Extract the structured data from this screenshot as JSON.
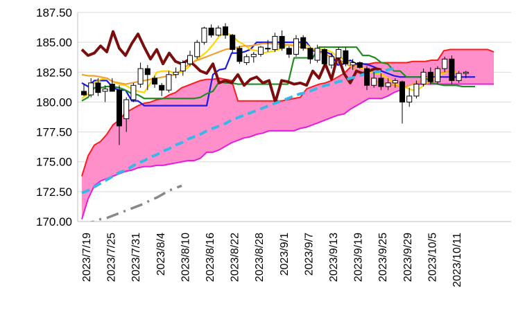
{
  "chart_data": {
    "type": "line",
    "title": "",
    "xlabel": "",
    "ylabel": "",
    "ylim": [
      170.0,
      187.5
    ],
    "yticks": [
      "170.00",
      "172.50",
      "175.00",
      "177.50",
      "180.00",
      "182.50",
      "185.00",
      "187.50"
    ],
    "xtick_labels": [
      "2023/7/19",
      "2023/7/25",
      "2023/7/31",
      "2023/8/4",
      "2023/8/10",
      "2023/8/16",
      "2023/8/22",
      "2023/8/28",
      "2023/9/1",
      "2023/9/7",
      "2023/9/13",
      "2023/9/19",
      "2023/9/25",
      "2023/9/29",
      "2023/10/5",
      "2023/10/11"
    ],
    "grid": true,
    "legend": "none",
    "cloud": {
      "fill": "#ff8fca",
      "span_a": [
        173.8,
        175.5,
        176.4,
        176.7,
        177.3,
        178.1,
        178.5,
        179.1,
        179.4,
        179.7,
        179.9,
        180.0,
        180.2,
        180.3,
        180.6,
        180.8,
        181.2,
        181.4,
        181.6,
        181.8,
        181.9,
        181.9,
        182.0,
        181.9,
        181.8,
        180.1,
        180.1,
        180.1,
        180.1,
        180.1,
        180.1,
        180.1,
        180.1,
        180.2,
        180.3,
        180.4,
        181.1,
        181.3,
        181.5,
        181.6,
        181.8,
        182.1,
        182.4,
        182.9,
        183.1,
        183.2,
        183.2,
        183.3,
        183.3,
        183.3,
        183.3,
        183.3,
        183.3,
        183.4,
        183.4,
        183.4,
        183.5,
        183.5,
        184.3,
        184.4,
        184.4,
        184.4,
        184.4,
        184.4,
        184.4,
        184.4,
        184.2
      ],
      "span_b": [
        170.2,
        171.9,
        173.0,
        173.4,
        173.6,
        173.8,
        174.0,
        174.2,
        174.3,
        174.5,
        174.6,
        174.6,
        174.7,
        174.7,
        174.8,
        174.9,
        175.0,
        175.1,
        175.1,
        175.3,
        175.8,
        175.8,
        176.0,
        176.3,
        176.6,
        176.8,
        177.0,
        177.1,
        177.3,
        177.4,
        177.6,
        177.6,
        177.6,
        177.6,
        177.6,
        177.8,
        177.9,
        178.1,
        178.3,
        178.5,
        178.7,
        178.9,
        179.0,
        179.4,
        179.7,
        180.0,
        180.3,
        180.3,
        180.3,
        180.5,
        180.8,
        181.0,
        181.3,
        181.5,
        181.5,
        181.5,
        181.5,
        181.5,
        181.5,
        181.5,
        181.5,
        181.5,
        181.5,
        181.5,
        181.5,
        181.5,
        181.5
      ]
    },
    "series": [
      {
        "color": "#1a1ae6",
        "values": [
          181.6,
          181.3,
          181.8,
          181.8,
          181.8,
          181.2,
          181.0,
          181.0,
          180.1,
          180.1,
          179.7,
          179.7,
          179.7,
          179.7,
          179.7,
          179.7,
          179.7,
          179.7,
          179.7,
          179.7,
          179.7,
          182.3,
          182.7,
          182.8,
          184.1,
          184.1,
          184.2,
          184.4,
          185.0,
          185.0,
          185.0,
          185.0,
          185.0,
          185.0,
          185.0,
          185.0,
          185.0,
          184.3,
          184.2,
          184.2,
          184.0,
          183.1,
          183.2,
          183.5,
          183.2,
          183.2,
          183.1,
          182.9,
          182.6,
          182.4,
          182.2,
          182.1,
          182.1,
          182.1,
          182.1,
          182.1,
          182.1,
          182.1,
          182.1,
          182.1,
          182.1,
          182.1,
          182.1,
          182.1
        ]
      },
      {
        "color": "#1f8c1f",
        "values": [
          180.1,
          180.4,
          181.2,
          181.2,
          181.3,
          181.3,
          181.2,
          181.0,
          180.7,
          180.6,
          180.3,
          180.3,
          180.3,
          180.3,
          180.3,
          180.3,
          180.3,
          180.3,
          180.3,
          180.4,
          180.7,
          180.9,
          181.7,
          181.6,
          181.6,
          181.5,
          181.5,
          181.5,
          181.5,
          181.5,
          181.5,
          181.5,
          181.5,
          181.5,
          183.7,
          183.7,
          183.7,
          183.7,
          184.6,
          184.6,
          184.6,
          184.6,
          184.6,
          184.6,
          184.6,
          183.9,
          183.9,
          183.7,
          183.3,
          183.2,
          182.6,
          182.6,
          182.1,
          182.1,
          182.1,
          182.1,
          181.6,
          181.5,
          181.4,
          181.4,
          181.4,
          181.3,
          181.3,
          181.3
        ]
      },
      {
        "color": "#ffd600",
        "values": [
          180.3,
          180.7,
          181.6,
          181.9,
          182.0,
          181.7,
          181.5,
          181.4,
          181.1,
          180.9,
          180.8,
          181.6,
          182.5,
          182.6,
          182.6,
          182.4,
          182.5,
          182.9,
          183.4,
          183.8,
          184.2,
          184.8,
          185.5,
          185.8,
          185.6,
          185.1,
          184.8,
          184.4,
          184.3,
          184.1,
          184.2,
          184.3,
          184.5,
          184.8,
          184.8,
          184.9,
          184.8,
          184.4,
          184.4,
          184.4,
          184.2,
          183.8,
          183.6,
          183.3,
          183.0,
          182.8,
          182.6,
          182.4,
          182.3,
          182.0,
          181.6,
          181.3,
          181.2,
          181.0,
          181.1,
          181.5,
          181.8,
          182.2,
          182.4,
          182.7,
          182.5
        ]
      },
      {
        "color": "#f0a030",
        "values": [
          182.3,
          182.2,
          182.2,
          182.1,
          182.0,
          181.7,
          181.6,
          181.5,
          181.6,
          181.7,
          181.8,
          181.9,
          182.0,
          182.1,
          182.2,
          182.3,
          182.7,
          183.1,
          183.4,
          183.6,
          183.8,
          184.0,
          184.2,
          184.4,
          184.5,
          184.6,
          184.7,
          184.7,
          184.8,
          184.9,
          184.9,
          184.9,
          184.8,
          184.8,
          184.7,
          184.6,
          184.5,
          184.4,
          184.2,
          184.0,
          183.8,
          183.6,
          183.3,
          183.0,
          182.7,
          182.3,
          182.1,
          181.8,
          181.6,
          181.5,
          181.4,
          181.3,
          181.3,
          181.5,
          181.7,
          182.0,
          182.2,
          182.4,
          182.5,
          182.6,
          182.6
        ]
      },
      {
        "color": "#7b0d0d",
        "values": [
          184.4,
          183.9,
          184.1,
          184.7,
          184.2,
          185.9,
          184.5,
          183.9,
          184.9,
          185.7,
          184.6,
          183.6,
          184.4,
          183.2,
          184.1,
          183.4,
          183.2,
          183.5,
          183.1,
          182.6,
          182.4,
          183.2,
          181.6,
          181.8,
          181.6,
          182.3,
          181.4,
          181.9,
          182.1,
          181.6,
          181.8,
          180.0,
          181.8,
          181.7,
          181.5,
          181.6,
          181.4,
          182.6,
          182.0,
          183.2,
          181.9,
          183.9,
          182.4,
          181.6,
          182.6,
          182.4,
          182.6,
          182.8,
          182.7
        ]
      },
      {
        "color": "#38b8e8",
        "dashed": true,
        "values": [
          172.4,
          172.6,
          172.9,
          173.2,
          173.5,
          173.8,
          174.1,
          174.3,
          174.6,
          174.9,
          175.1,
          175.4,
          175.6,
          175.9,
          176.1,
          176.4,
          176.6,
          176.9,
          177.1,
          177.3,
          177.6,
          177.8,
          178.0,
          178.2,
          178.5,
          178.7,
          178.9,
          179.1,
          179.3,
          179.5,
          179.7,
          179.9,
          180.1,
          180.3,
          180.5,
          180.7,
          180.8,
          181.0,
          181.2,
          181.4,
          181.5,
          181.7,
          181.8,
          182.0,
          182.1,
          182.3,
          182.4,
          182.5,
          182.6,
          182.7,
          182.8
        ]
      },
      {
        "color": "#888888",
        "dashdot": true,
        "values": [
          169.8,
          169.9,
          170.0,
          170.2,
          170.3,
          170.5,
          170.7,
          170.9,
          171.1,
          171.3,
          171.5,
          171.8,
          172.0,
          172.3,
          172.6,
          172.8,
          173.0
        ]
      }
    ],
    "candles": [
      [
        180.9,
        181.5,
        180.5,
        180.6
      ],
      [
        180.6,
        182.0,
        180.4,
        181.6
      ],
      [
        181.6,
        182.0,
        180.5,
        180.8
      ],
      [
        180.9,
        181.4,
        180.0,
        181.1
      ],
      [
        181.5,
        182.0,
        181.0,
        180.9
      ],
      [
        181.0,
        181.4,
        176.4,
        178.0
      ],
      [
        178.6,
        180.4,
        177.5,
        180.2
      ],
      [
        180.2,
        181.6,
        180.0,
        181.4
      ],
      [
        181.5,
        183.3,
        181.2,
        182.8
      ],
      [
        182.8,
        183.1,
        181.0,
        182.3
      ],
      [
        182.0,
        182.2,
        181.2,
        181.5
      ],
      [
        181.4,
        181.6,
        180.5,
        181.0
      ],
      [
        181.0,
        182.6,
        180.8,
        182.3
      ],
      [
        182.3,
        182.9,
        182.0,
        182.5
      ],
      [
        182.6,
        183.5,
        182.2,
        183.3
      ],
      [
        183.2,
        184.3,
        183.0,
        183.9
      ],
      [
        183.8,
        185.2,
        183.6,
        185.0
      ],
      [
        185.0,
        186.3,
        184.8,
        186.2
      ],
      [
        186.2,
        186.5,
        185.4,
        185.6
      ],
      [
        185.6,
        186.4,
        185.5,
        186.2
      ],
      [
        186.3,
        186.6,
        185.3,
        185.6
      ],
      [
        185.6,
        185.7,
        184.1,
        184.4
      ],
      [
        184.5,
        184.7,
        183.2,
        183.4
      ],
      [
        183.3,
        184.0,
        183.1,
        183.8
      ],
      [
        183.8,
        184.2,
        183.3,
        184.0
      ],
      [
        184.0,
        184.7,
        183.8,
        184.6
      ],
      [
        184.5,
        185.2,
        184.2,
        184.5
      ],
      [
        184.4,
        185.8,
        184.2,
        185.5
      ],
      [
        185.5,
        186.0,
        184.3,
        184.5
      ],
      [
        184.5,
        184.7,
        183.7,
        184.0
      ],
      [
        184.0,
        185.6,
        183.8,
        185.3
      ],
      [
        185.4,
        185.6,
        184.3,
        184.5
      ],
      [
        184.5,
        184.6,
        183.2,
        183.6
      ],
      [
        183.5,
        184.8,
        183.3,
        184.5
      ],
      [
        184.4,
        184.5,
        183.0,
        183.2
      ],
      [
        183.1,
        184.1,
        182.8,
        183.8
      ],
      [
        183.7,
        184.6,
        183.2,
        184.4
      ],
      [
        184.3,
        184.6,
        183.0,
        183.2
      ],
      [
        183.1,
        183.6,
        182.7,
        183.3
      ],
      [
        183.3,
        183.4,
        182.8,
        182.9
      ],
      [
        182.8,
        183.0,
        181.0,
        181.4
      ],
      [
        181.4,
        182.5,
        181.2,
        182.0
      ],
      [
        182.0,
        182.4,
        181.0,
        181.3
      ],
      [
        181.3,
        182.0,
        181.0,
        181.6
      ],
      [
        181.6,
        182.0,
        181.2,
        181.8
      ],
      [
        181.7,
        181.8,
        178.2,
        180.0
      ],
      [
        180.0,
        181.2,
        179.6,
        180.5
      ],
      [
        180.5,
        181.8,
        180.3,
        181.5
      ],
      [
        181.5,
        182.8,
        181.3,
        182.5
      ],
      [
        182.5,
        182.9,
        181.5,
        181.7
      ],
      [
        181.7,
        183.0,
        181.5,
        182.8
      ],
      [
        182.8,
        183.8,
        182.5,
        183.6
      ],
      [
        183.6,
        183.9,
        181.5,
        181.8
      ],
      [
        181.8,
        182.6,
        181.6,
        182.4
      ],
      [
        182.4,
        182.6,
        182.0,
        182.5
      ]
    ]
  }
}
